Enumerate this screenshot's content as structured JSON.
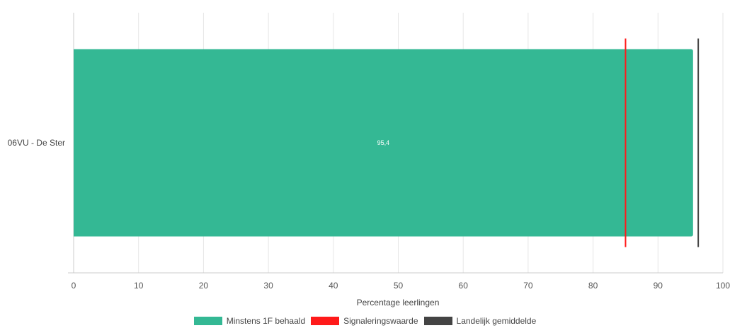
{
  "chart_data": {
    "type": "bar",
    "orientation": "horizontal",
    "categories": [
      "06VU - De Ster"
    ],
    "series": [
      {
        "name": "Minstens 1F behaald",
        "values": [
          95.4
        ],
        "color": "#34b894"
      }
    ],
    "data_labels": [
      "95,4"
    ],
    "reference_lines": [
      {
        "name": "Signaleringswaarde",
        "value": 85,
        "color": "#ff1a1a"
      },
      {
        "name": "Landelijk gemiddelde",
        "value": 96.2,
        "color": "#444444"
      }
    ],
    "xlabel": "Percentage leerlingen",
    "xlim": [
      0,
      100
    ],
    "xticks": [
      "0",
      "10",
      "20",
      "30",
      "40",
      "50",
      "60",
      "70",
      "80",
      "90",
      "100"
    ],
    "grid": true,
    "legend_position": "bottom-center"
  }
}
